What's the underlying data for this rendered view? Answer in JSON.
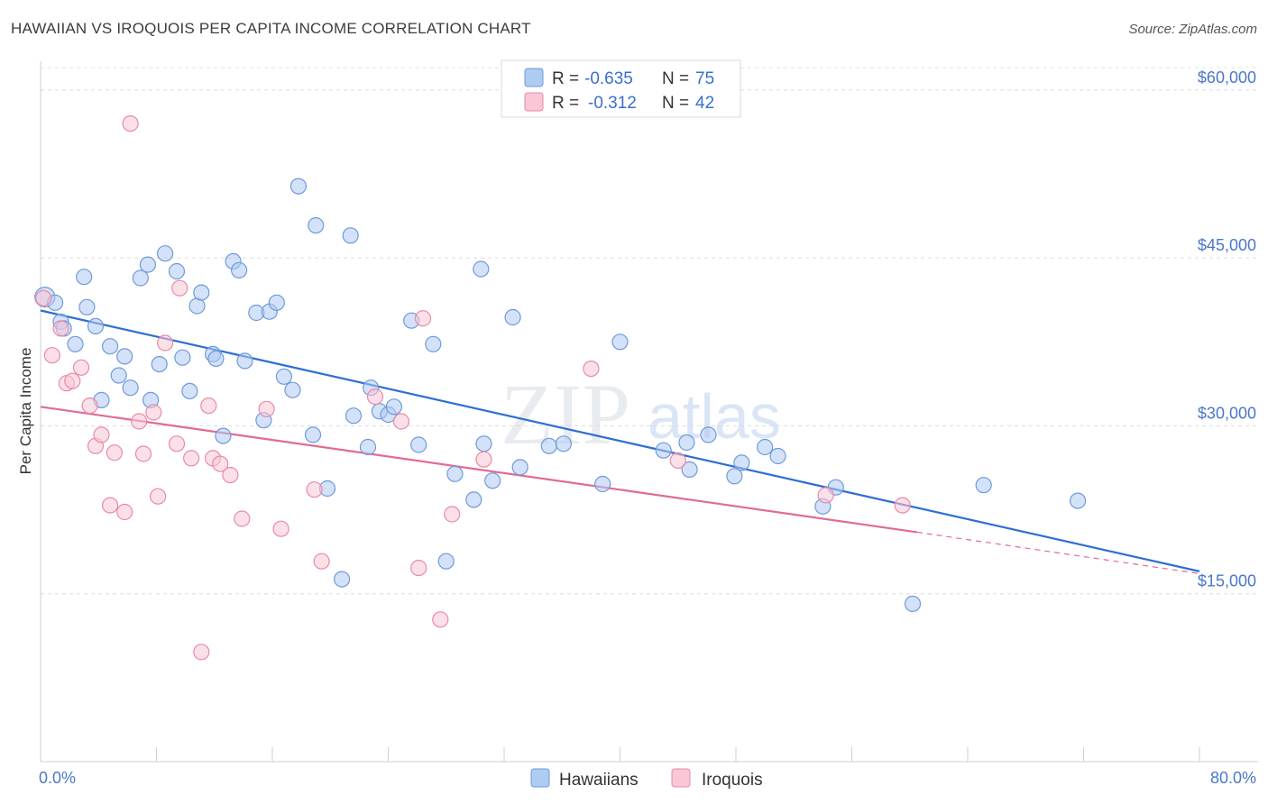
{
  "title": "HAWAIIAN VS IROQUOIS PER CAPITA INCOME CORRELATION CHART",
  "source": "Source: ZipAtlas.com",
  "watermark": {
    "zip": "ZIP",
    "atlas": "atlas"
  },
  "legend": {
    "r_label": "R =",
    "n_label": "N =",
    "rows": [
      {
        "r": "-0.635",
        "n": "75",
        "color": "#aecbf2",
        "stroke": "#6f9ad9"
      },
      {
        "r": "-0.312",
        "n": "42",
        "color": "#f9c7d6",
        "stroke": "#e88aa8"
      }
    ]
  },
  "bottom_legend": [
    "Hawaiians",
    "Iroquois"
  ],
  "chart_data": {
    "type": "scatter",
    "title": "HAWAIIAN VS IROQUOIS PER CAPITA INCOME CORRELATION CHART",
    "xlabel": "",
    "ylabel": "Per Capita Income",
    "xlim": [
      0,
      80
    ],
    "ylim": [
      0,
      62000
    ],
    "x_tick_labels": [
      "0.0%",
      "80.0%"
    ],
    "y_ticks": [
      15000,
      30000,
      45000,
      60000
    ],
    "y_tick_labels": [
      "$15,000",
      "$30,000",
      "$45,000",
      "$60,000"
    ],
    "grid": true,
    "series": [
      {
        "name": "Hawaiians",
        "color": "#aecbf2",
        "stroke": "#6f9ad9",
        "trend": {
          "x0": 0,
          "y0": 40300,
          "x1": 80,
          "y1": 17000,
          "color": "#2d6fd1"
        },
        "points": [
          [
            0.3,
            41500
          ],
          [
            1.0,
            41000
          ],
          [
            1.4,
            39300
          ],
          [
            1.6,
            38700
          ],
          [
            2.4,
            37300
          ],
          [
            3.0,
            43300
          ],
          [
            3.2,
            40600
          ],
          [
            3.8,
            38900
          ],
          [
            4.2,
            32300
          ],
          [
            4.8,
            37100
          ],
          [
            5.4,
            34500
          ],
          [
            5.8,
            36200
          ],
          [
            6.2,
            33400
          ],
          [
            6.9,
            43200
          ],
          [
            7.4,
            44400
          ],
          [
            7.6,
            32300
          ],
          [
            8.2,
            35500
          ],
          [
            8.6,
            45400
          ],
          [
            9.4,
            43800
          ],
          [
            9.8,
            36100
          ],
          [
            10.3,
            33100
          ],
          [
            10.8,
            40700
          ],
          [
            11.1,
            41900
          ],
          [
            11.9,
            36400
          ],
          [
            12.1,
            36000
          ],
          [
            12.6,
            29100
          ],
          [
            13.3,
            44700
          ],
          [
            13.7,
            43900
          ],
          [
            14.1,
            35800
          ],
          [
            14.9,
            40100
          ],
          [
            15.4,
            30500
          ],
          [
            15.8,
            40200
          ],
          [
            16.3,
            41000
          ],
          [
            16.8,
            34400
          ],
          [
            17.4,
            33200
          ],
          [
            17.8,
            51400
          ],
          [
            18.8,
            29200
          ],
          [
            19.0,
            47900
          ],
          [
            19.8,
            24400
          ],
          [
            20.8,
            16300
          ],
          [
            21.4,
            47000
          ],
          [
            21.6,
            30900
          ],
          [
            22.6,
            28100
          ],
          [
            22.8,
            33400
          ],
          [
            23.4,
            31300
          ],
          [
            24.0,
            31000
          ],
          [
            24.4,
            31700
          ],
          [
            25.6,
            39400
          ],
          [
            26.1,
            28300
          ],
          [
            27.1,
            37300
          ],
          [
            28.0,
            17900
          ],
          [
            28.6,
            25700
          ],
          [
            29.9,
            23400
          ],
          [
            30.4,
            44000
          ],
          [
            30.6,
            28400
          ],
          [
            31.2,
            25100
          ],
          [
            32.6,
            39700
          ],
          [
            33.1,
            26300
          ],
          [
            35.1,
            28200
          ],
          [
            36.1,
            28400
          ],
          [
            38.8,
            24800
          ],
          [
            40.0,
            37500
          ],
          [
            43.0,
            27800
          ],
          [
            44.6,
            28500
          ],
          [
            44.8,
            26100
          ],
          [
            46.1,
            29200
          ],
          [
            47.9,
            25500
          ],
          [
            48.4,
            26700
          ],
          [
            50.0,
            28100
          ],
          [
            50.9,
            27300
          ],
          [
            54.0,
            22800
          ],
          [
            54.9,
            24500
          ],
          [
            60.2,
            14100
          ],
          [
            65.1,
            24700
          ],
          [
            71.6,
            23300
          ]
        ]
      },
      {
        "name": "Iroquois",
        "color": "#f9c7d6",
        "stroke": "#e88aa8",
        "trend": {
          "x0": 0,
          "y0": 31700,
          "x1": 60.5,
          "y1": 20500,
          "dash_to": {
            "x": 80,
            "y": 16800
          },
          "color": "#e26a94"
        },
        "points": [
          [
            0.2,
            41400
          ],
          [
            0.8,
            36300
          ],
          [
            1.4,
            38700
          ],
          [
            1.8,
            33800
          ],
          [
            2.2,
            34000
          ],
          [
            2.8,
            35200
          ],
          [
            3.4,
            31800
          ],
          [
            3.8,
            28200
          ],
          [
            4.2,
            29200
          ],
          [
            4.8,
            22900
          ],
          [
            5.1,
            27600
          ],
          [
            5.8,
            22300
          ],
          [
            6.2,
            57000
          ],
          [
            6.8,
            30400
          ],
          [
            7.1,
            27500
          ],
          [
            7.8,
            31200
          ],
          [
            8.1,
            23700
          ],
          [
            8.6,
            37400
          ],
          [
            9.4,
            28400
          ],
          [
            9.6,
            42300
          ],
          [
            10.4,
            27100
          ],
          [
            11.1,
            9800
          ],
          [
            11.6,
            31800
          ],
          [
            11.9,
            27100
          ],
          [
            12.4,
            26600
          ],
          [
            13.1,
            25600
          ],
          [
            13.9,
            21700
          ],
          [
            15.6,
            31500
          ],
          [
            16.6,
            20800
          ],
          [
            18.9,
            24300
          ],
          [
            19.4,
            17900
          ],
          [
            23.1,
            32600
          ],
          [
            24.9,
            30400
          ],
          [
            26.1,
            17300
          ],
          [
            26.4,
            39600
          ],
          [
            27.6,
            12700
          ],
          [
            28.4,
            22100
          ],
          [
            30.6,
            27000
          ],
          [
            38.0,
            35100
          ],
          [
            44.0,
            26900
          ],
          [
            54.2,
            23800
          ],
          [
            59.5,
            22900
          ]
        ]
      }
    ]
  }
}
